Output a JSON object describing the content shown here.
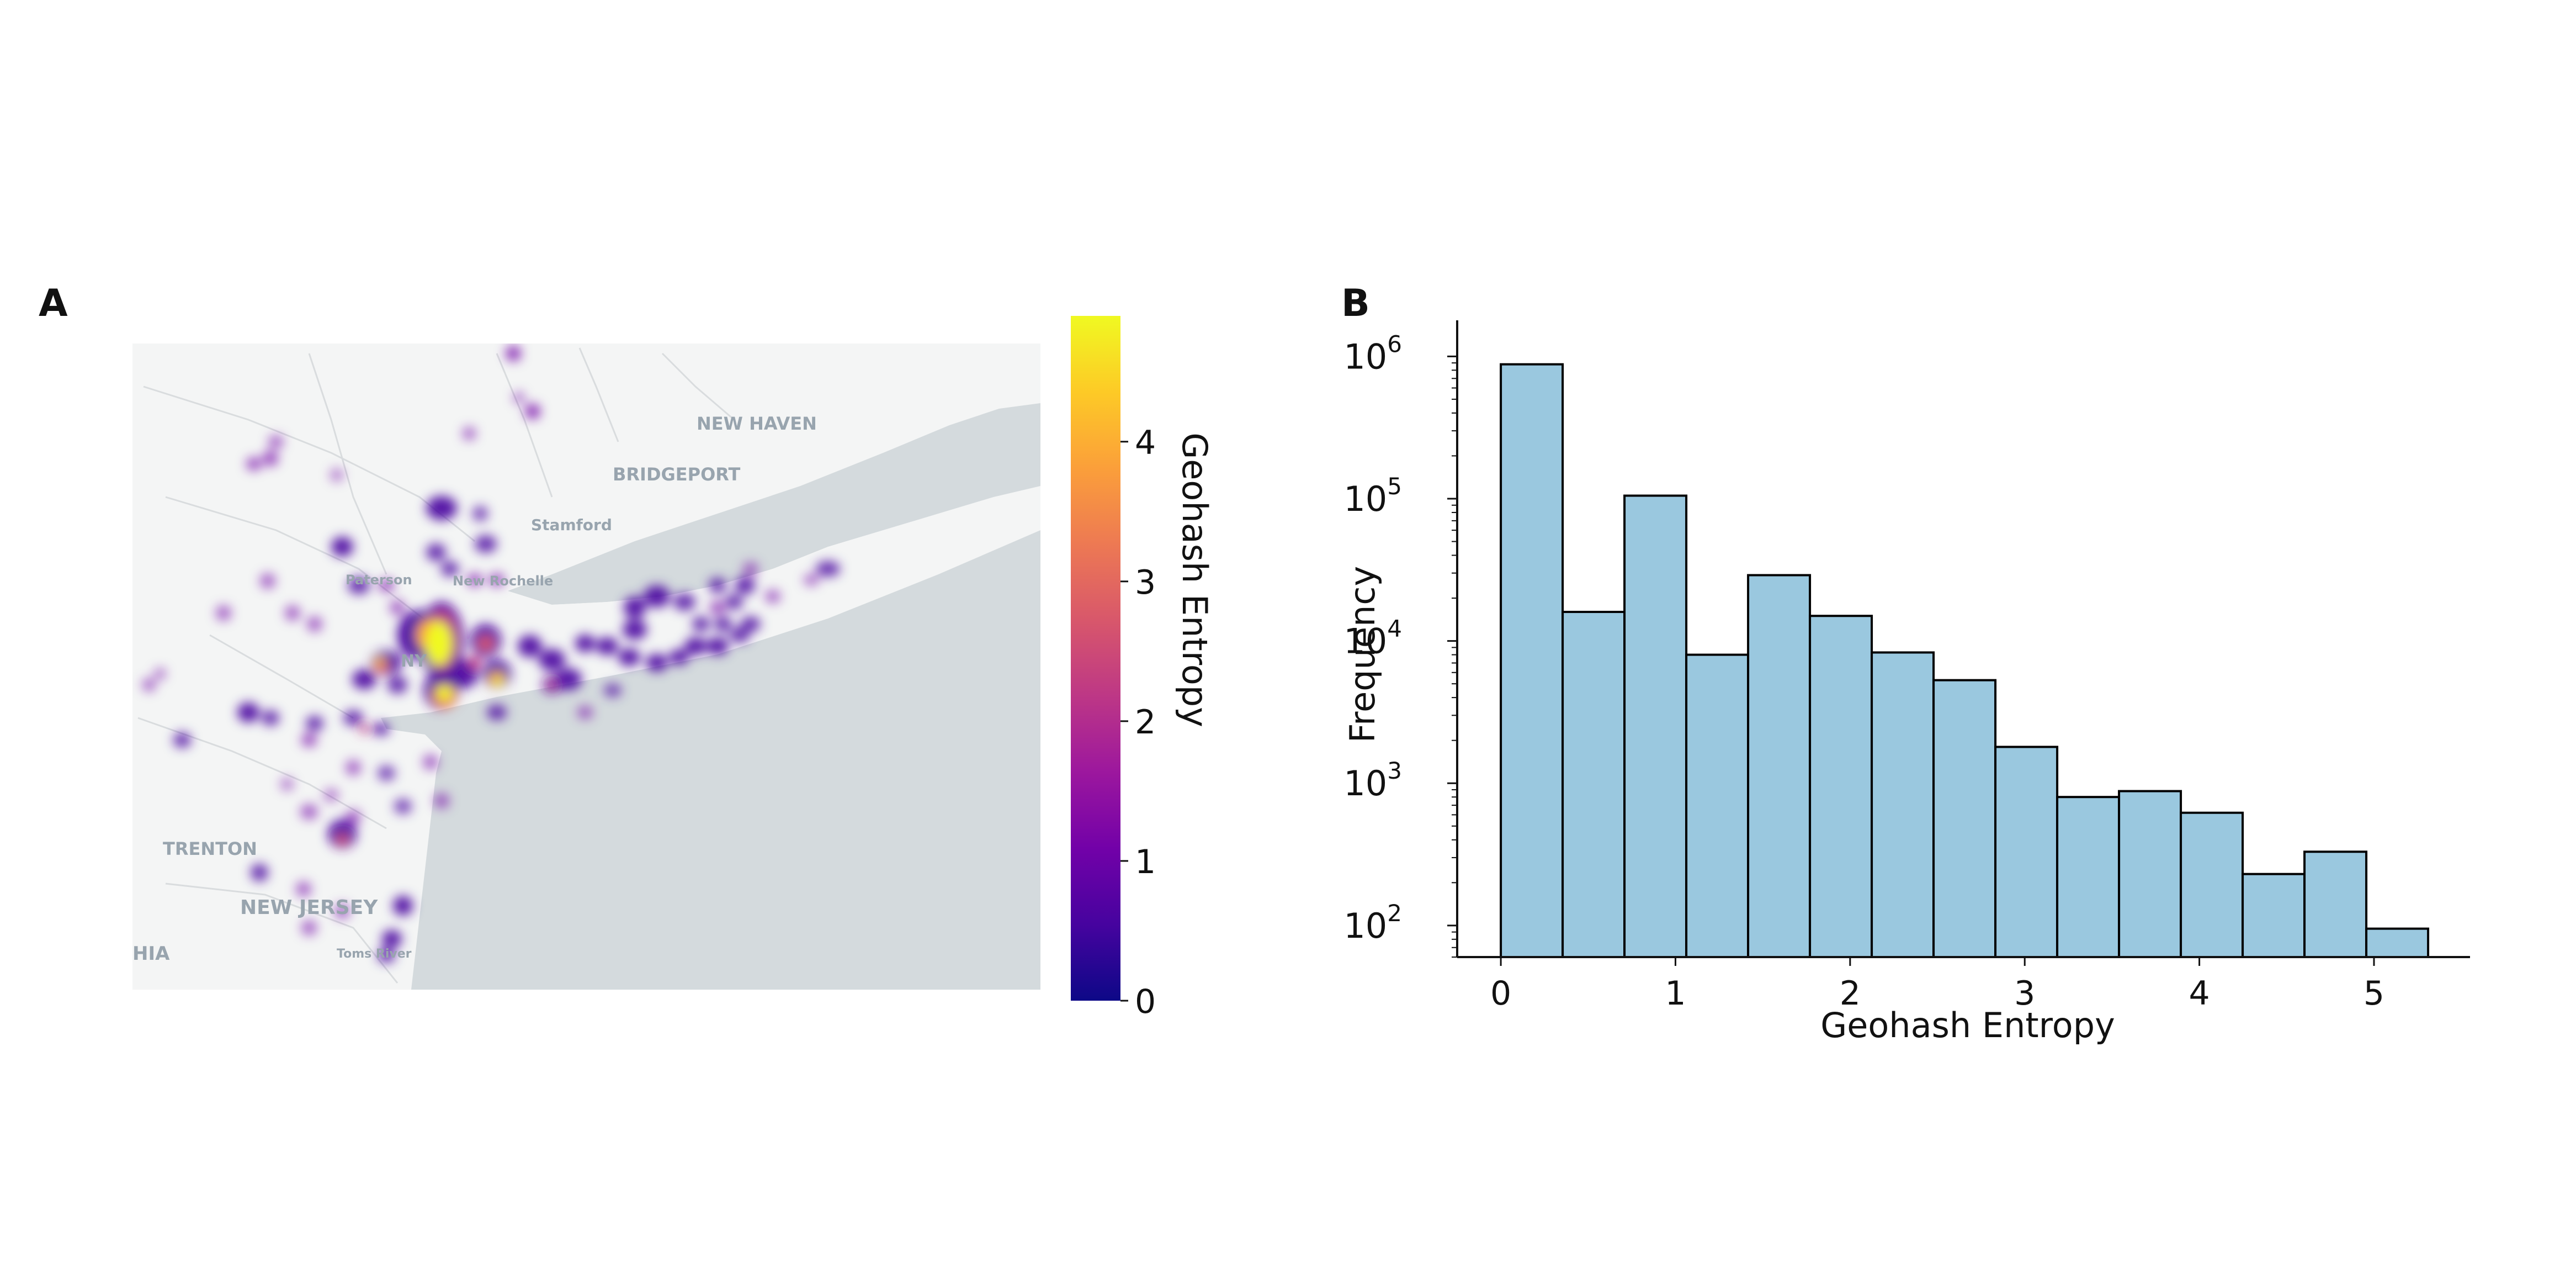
{
  "panel_a": {
    "label": "A",
    "map_labels": [
      "NEW HAVEN",
      "BRIDGEPORT",
      "Stamford",
      "Paterson",
      "New Rochelle",
      "TRENTON",
      "NEW JERSEY",
      "HIA",
      "Toms River",
      "NY"
    ],
    "colorbar": {
      "label": "Geohash Entropy",
      "min": 0,
      "max": 4.9,
      "ticks": [
        "0",
        "1",
        "2",
        "3",
        "4"
      ],
      "colors": [
        "#0d0887",
        "#46039f",
        "#7201a8",
        "#9c179e",
        "#bd3786",
        "#d8576b",
        "#ed7953",
        "#fb9f3a",
        "#fdca26",
        "#f0f921"
      ]
    }
  },
  "panel_b": {
    "label": "B"
  },
  "chart_data": [
    {
      "type": "heatmap",
      "colorbar_label": "Geohash Entropy",
      "colorbar_range": [
        0,
        4.9
      ],
      "colorbar_ticks": [
        0,
        1,
        2,
        3,
        4
      ],
      "colormap": "plasma"
    },
    {
      "type": "bar",
      "xlabel": "Geohash Entropy",
      "ylabel": "Frequency",
      "yscale": "log",
      "ylim": [
        60,
        1500000
      ],
      "xlim": [
        -0.25,
        5.55
      ],
      "bar_color": "#9ac8df",
      "edge_color": "#000000",
      "bin_edges": [
        0,
        0.354,
        0.708,
        1.062,
        1.416,
        1.77,
        2.124,
        2.478,
        2.832,
        3.186,
        3.54,
        3.894,
        4.248,
        4.602,
        4.956,
        5.31
      ],
      "values": [
        880000,
        16000,
        105000,
        8000,
        29000,
        15000,
        8300,
        5300,
        1800,
        800,
        880,
        620,
        230,
        330,
        95
      ],
      "x_ticks": [
        0,
        1,
        2,
        3,
        4,
        5
      ],
      "x_tick_labels": [
        "0",
        "1",
        "2",
        "3",
        "4",
        "5"
      ],
      "y_ticks": [
        100,
        1000,
        10000,
        100000,
        1000000
      ],
      "y_tick_bases": [
        "10",
        "10",
        "10",
        "10",
        "10"
      ],
      "y_tick_exponents": [
        "2",
        "3",
        "4",
        "5",
        "6"
      ],
      "grid": false
    }
  ]
}
